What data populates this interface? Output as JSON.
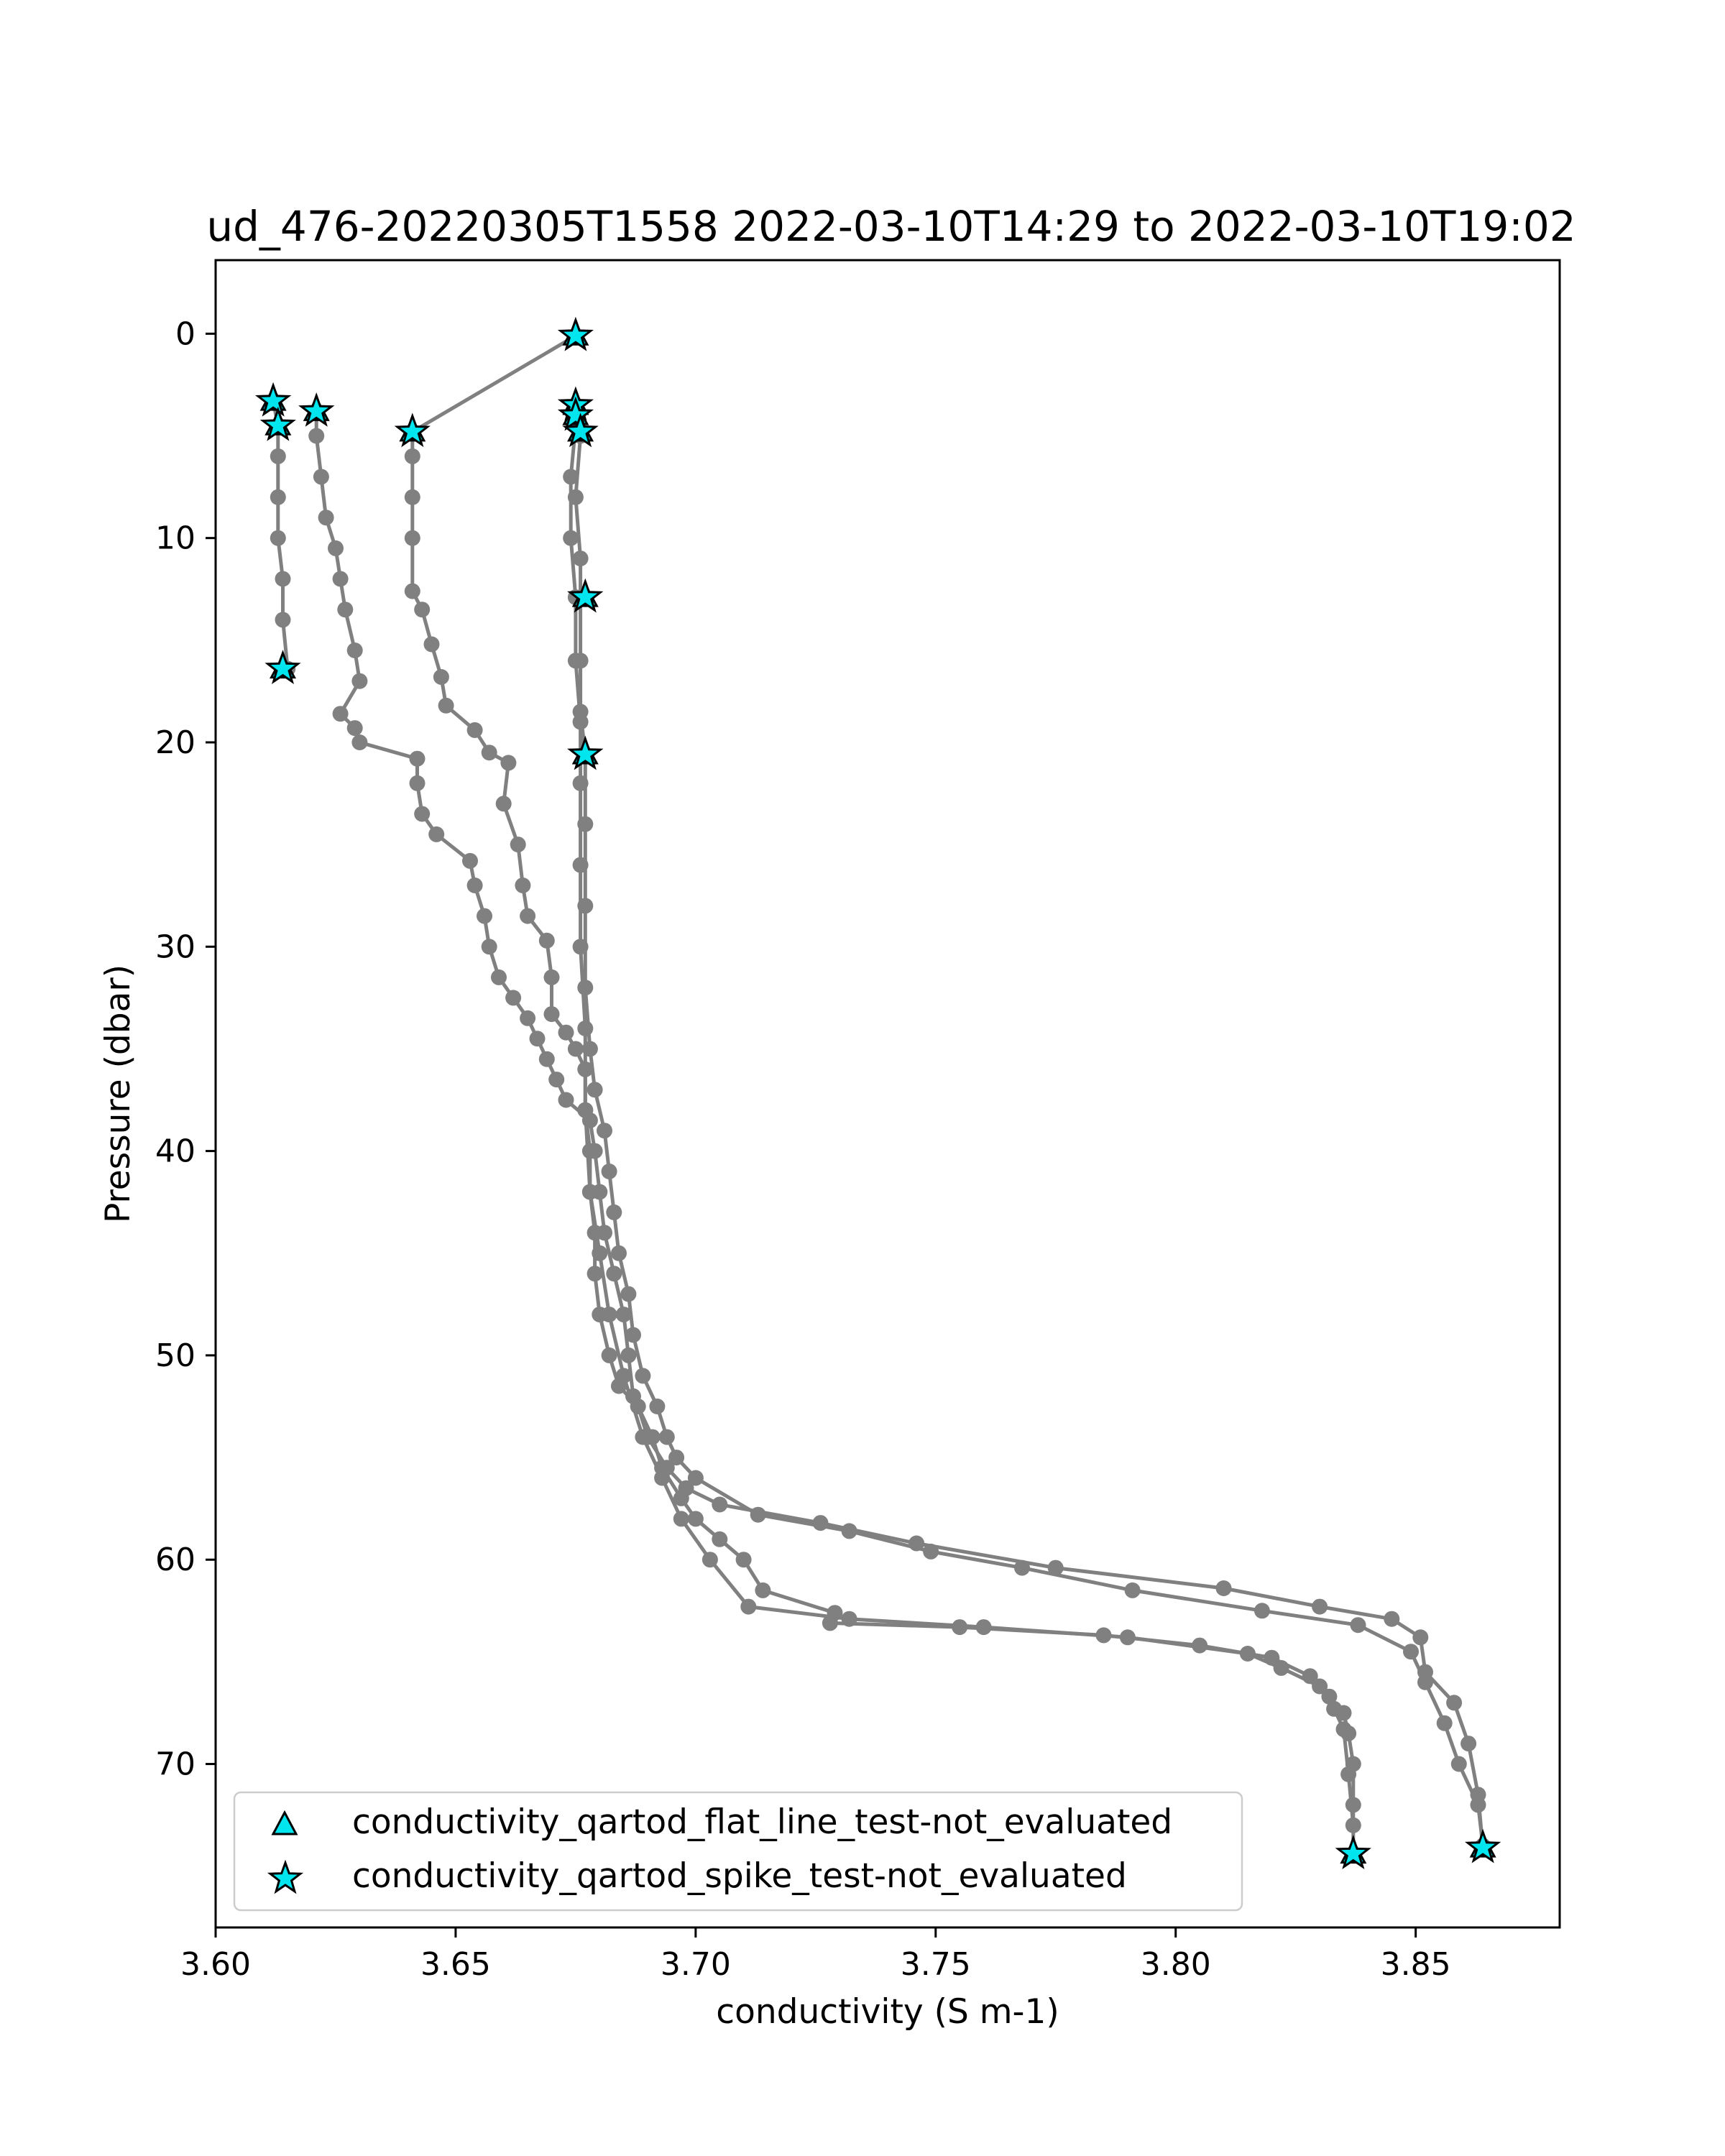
{
  "chart_data": {
    "type": "scatter",
    "title": "ud_476-20220305T1558 2022-03-10T14:29 to 2022-03-10T19:02",
    "xlabel": "conductivity (S m-1)",
    "ylabel": "Pressure (dbar)",
    "xlim": [
      3.6,
      3.88
    ],
    "ylim": [
      78,
      -3.6
    ],
    "y_inverted": true,
    "x_ticks": [
      "3.60",
      "3.65",
      "3.70",
      "3.75",
      "3.80",
      "3.85"
    ],
    "x_tick_values": [
      3.6,
      3.65,
      3.7,
      3.75,
      3.8,
      3.85
    ],
    "y_ticks": [
      "0",
      "10",
      "20",
      "30",
      "40",
      "50",
      "60",
      "70"
    ],
    "y_tick_values": [
      0,
      10,
      20,
      30,
      40,
      50,
      60,
      70
    ],
    "grid": false,
    "legend_position": "lower-left",
    "colors": {
      "profile": "#808080",
      "flag_fill": "#00e5ee",
      "flag_edge": "#000000"
    },
    "legend": [
      {
        "label": "conductivity_qartod_flat_line_test-not_evaluated",
        "marker": "triangle"
      },
      {
        "label": "conductivity_qartod_spike_test-not_evaluated",
        "marker": "star"
      }
    ],
    "series": [
      {
        "role": "profile",
        "marker": "circle",
        "points": [
          [
            3.675,
            0.1
          ],
          [
            3.641,
            4.8
          ],
          [
            3.641,
            6.0
          ],
          [
            3.641,
            8.0
          ],
          [
            3.641,
            10.0
          ],
          [
            3.641,
            12.6
          ],
          [
            3.643,
            13.5
          ],
          [
            3.645,
            15.2
          ],
          [
            3.647,
            16.8
          ],
          [
            3.648,
            18.2
          ],
          [
            3.654,
            19.4
          ],
          [
            3.657,
            20.5
          ],
          [
            3.661,
            21.0
          ],
          [
            3.66,
            23.0
          ],
          [
            3.663,
            25.0
          ],
          [
            3.664,
            27.0
          ],
          [
            3.665,
            28.5
          ],
          [
            3.669,
            29.7
          ],
          [
            3.67,
            31.5
          ],
          [
            3.67,
            33.3
          ],
          [
            3.673,
            34.2
          ],
          [
            3.675,
            35.0
          ],
          [
            3.677,
            36.0
          ],
          [
            3.677,
            38.0
          ],
          [
            3.678,
            40.0
          ],
          [
            3.678,
            42.0
          ],
          [
            3.679,
            44.0
          ],
          [
            3.679,
            46.0
          ],
          [
            3.68,
            48.0
          ],
          [
            3.682,
            50.0
          ],
          [
            3.684,
            51.5
          ],
          [
            3.688,
            52.5
          ],
          [
            3.69,
            54.0
          ],
          [
            3.694,
            55.5
          ],
          [
            3.698,
            56.5
          ],
          [
            3.705,
            57.3
          ],
          [
            3.726,
            58.2
          ],
          [
            3.746,
            59.2
          ],
          [
            3.775,
            60.4
          ],
          [
            3.81,
            61.4
          ],
          [
            3.83,
            62.3
          ],
          [
            3.845,
            62.9
          ],
          [
            3.851,
            63.8
          ],
          [
            3.852,
            65.5
          ],
          [
            3.858,
            67.0
          ],
          [
            3.861,
            69.0
          ],
          [
            3.863,
            71.5
          ],
          [
            3.864,
            74.1
          ]
        ]
      },
      {
        "role": "profile",
        "marker": "circle",
        "points": [
          [
            3.675,
            3.5
          ],
          [
            3.676,
            5.0
          ],
          [
            3.675,
            8.0
          ],
          [
            3.676,
            11.0
          ],
          [
            3.676,
            13.0
          ],
          [
            3.676,
            16.0
          ],
          [
            3.676,
            18.5
          ],
          [
            3.677,
            20.6
          ],
          [
            3.677,
            24.0
          ],
          [
            3.677,
            28.0
          ],
          [
            3.677,
            32.0
          ],
          [
            3.678,
            35.0
          ],
          [
            3.679,
            37.0
          ],
          [
            3.681,
            39.0
          ],
          [
            3.682,
            41.0
          ],
          [
            3.683,
            43.0
          ],
          [
            3.684,
            45.0
          ],
          [
            3.686,
            47.0
          ],
          [
            3.687,
            49.0
          ],
          [
            3.689,
            51.0
          ],
          [
            3.692,
            52.5
          ],
          [
            3.694,
            54.0
          ],
          [
            3.696,
            55.0
          ],
          [
            3.7,
            56.0
          ],
          [
            3.713,
            57.8
          ],
          [
            3.732,
            58.6
          ],
          [
            3.749,
            59.6
          ],
          [
            3.768,
            60.4
          ],
          [
            3.791,
            61.5
          ],
          [
            3.818,
            62.5
          ],
          [
            3.838,
            63.2
          ],
          [
            3.849,
            64.5
          ],
          [
            3.852,
            66.0
          ],
          [
            3.856,
            68.0
          ],
          [
            3.859,
            70.0
          ],
          [
            3.863,
            72.0
          ],
          [
            3.864,
            74.0
          ]
        ]
      },
      {
        "role": "profile",
        "marker": "circle",
        "points": [
          [
            3.612,
            3.3
          ],
          [
            3.613,
            4.5
          ],
          [
            3.613,
            6.0
          ],
          [
            3.613,
            8.0
          ],
          [
            3.613,
            10.0
          ],
          [
            3.614,
            12.0
          ],
          [
            3.614,
            14.0
          ],
          [
            3.615,
            16.4
          ]
        ]
      },
      {
        "role": "profile",
        "marker": "circle",
        "points": [
          [
            3.621,
            3.8
          ],
          [
            3.621,
            5.0
          ],
          [
            3.622,
            7.0
          ],
          [
            3.623,
            9.0
          ],
          [
            3.625,
            10.5
          ],
          [
            3.626,
            12.0
          ],
          [
            3.627,
            13.5
          ],
          [
            3.629,
            15.5
          ],
          [
            3.63,
            17.0
          ],
          [
            3.626,
            18.6
          ],
          [
            3.629,
            19.3
          ],
          [
            3.63,
            20.0
          ],
          [
            3.642,
            20.8
          ],
          [
            3.642,
            22.0
          ],
          [
            3.643,
            23.5
          ],
          [
            3.646,
            24.5
          ],
          [
            3.653,
            25.8
          ],
          [
            3.654,
            27.0
          ],
          [
            3.656,
            28.5
          ],
          [
            3.657,
            30.0
          ],
          [
            3.659,
            31.5
          ],
          [
            3.662,
            32.5
          ],
          [
            3.665,
            33.5
          ],
          [
            3.667,
            34.5
          ],
          [
            3.669,
            35.5
          ],
          [
            3.671,
            36.5
          ],
          [
            3.673,
            37.5
          ],
          [
            3.678,
            38.5
          ],
          [
            3.679,
            40.0
          ],
          [
            3.68,
            42.0
          ],
          [
            3.681,
            44.0
          ],
          [
            3.683,
            46.0
          ],
          [
            3.685,
            48.0
          ],
          [
            3.686,
            50.0
          ],
          [
            3.687,
            52.0
          ],
          [
            3.691,
            54.0
          ],
          [
            3.693,
            55.5
          ],
          [
            3.697,
            57.0
          ],
          [
            3.7,
            58.0
          ],
          [
            3.705,
            59.0
          ],
          [
            3.71,
            60.0
          ],
          [
            3.714,
            61.5
          ],
          [
            3.729,
            62.6
          ],
          [
            3.728,
            63.1
          ],
          [
            3.755,
            63.3
          ],
          [
            3.785,
            63.7
          ],
          [
            3.805,
            64.2
          ],
          [
            3.82,
            64.8
          ],
          [
            3.828,
            65.7
          ],
          [
            3.832,
            66.7
          ],
          [
            3.835,
            67.5
          ],
          [
            3.836,
            68.5
          ],
          [
            3.837,
            70.0
          ],
          [
            3.837,
            72.0
          ],
          [
            3.837,
            74.4
          ]
        ]
      },
      {
        "role": "profile",
        "marker": "circle",
        "points": [
          [
            3.675,
            4.5
          ],
          [
            3.674,
            7.0
          ],
          [
            3.674,
            10.0
          ],
          [
            3.675,
            12.9
          ],
          [
            3.675,
            16.0
          ],
          [
            3.676,
            19.0
          ],
          [
            3.676,
            22.0
          ],
          [
            3.676,
            26.0
          ],
          [
            3.676,
            30.0
          ],
          [
            3.677,
            34.0
          ],
          [
            3.677,
            38.0
          ],
          [
            3.678,
            42.0
          ],
          [
            3.68,
            45.0
          ],
          [
            3.682,
            48.0
          ],
          [
            3.685,
            51.0
          ],
          [
            3.689,
            54.0
          ],
          [
            3.693,
            56.0
          ],
          [
            3.697,
            58.0
          ],
          [
            3.703,
            60.0
          ],
          [
            3.711,
            62.3
          ],
          [
            3.732,
            62.9
          ],
          [
            3.76,
            63.3
          ],
          [
            3.79,
            63.8
          ],
          [
            3.815,
            64.6
          ],
          [
            3.822,
            65.3
          ],
          [
            3.83,
            66.2
          ],
          [
            3.833,
            67.3
          ],
          [
            3.835,
            68.3
          ],
          [
            3.836,
            70.5
          ],
          [
            3.837,
            73.0
          ]
        ]
      }
    ],
    "flags": {
      "label": "conductivity_qartod_spike_test-not_evaluated",
      "marker": "star",
      "points": [
        [
          3.675,
          0.1
        ],
        [
          3.612,
          3.3
        ],
        [
          3.613,
          4.5
        ],
        [
          3.621,
          3.8
        ],
        [
          3.641,
          4.8
        ],
        [
          3.675,
          3.5
        ],
        [
          3.675,
          4.0
        ],
        [
          3.676,
          4.8
        ],
        [
          3.677,
          12.9
        ],
        [
          3.677,
          20.6
        ],
        [
          3.614,
          16.4
        ],
        [
          3.837,
          74.4
        ],
        [
          3.864,
          74.1
        ]
      ]
    }
  }
}
